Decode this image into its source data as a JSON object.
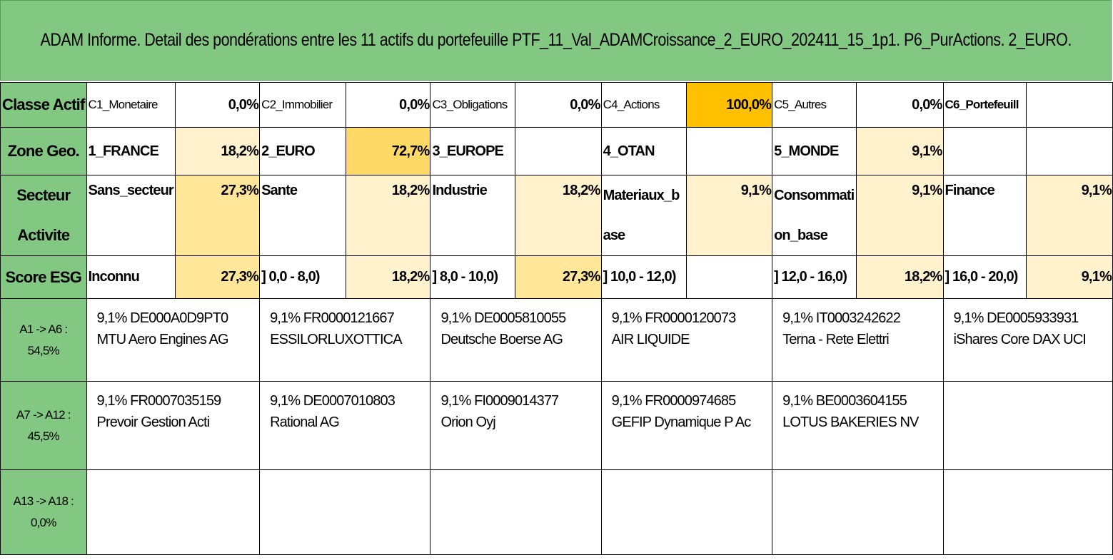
{
  "title": "ADAM Informe. Detail des pondérations entre les 11 actifs du portefeuille PTF_11_Val_ADAMCroissance_2_EURO_202411_15_1p1. P6_PurActions. 2_EURO.",
  "colors": {
    "header_green": "#82c882",
    "weight_pale": "#fff2cc",
    "weight_light": "#ffe699",
    "weight_mid": "#ffd966",
    "weight_strong": "#ffc000"
  },
  "classe_actif": {
    "label": "Classe Actif",
    "items": [
      {
        "name": "C1_Monetaire",
        "value": "0,0%"
      },
      {
        "name": "C2_Immobilier",
        "value": "0,0%"
      },
      {
        "name": "C3_Obligations",
        "value": "0,0%"
      },
      {
        "name": "C4_Actions",
        "value": "100,0%"
      },
      {
        "name": "C5_Autres",
        "value": "0,0%"
      },
      {
        "name": "C6_Portefeuill",
        "value": ""
      }
    ]
  },
  "zone_geo": {
    "label": "Zone Geo.",
    "items": [
      {
        "name": "1_FRANCE",
        "value": "18,2%"
      },
      {
        "name": "2_EURO",
        "value": "72,7%"
      },
      {
        "name": "3_EUROPE",
        "value": ""
      },
      {
        "name": "4_OTAN",
        "value": ""
      },
      {
        "name": "5_MONDE",
        "value": "9,1%"
      },
      {
        "name": "",
        "value": ""
      }
    ]
  },
  "secteur": {
    "label_line1": "Secteur",
    "label_line2": "Activite",
    "items": [
      {
        "name": "Sans_secteur",
        "value": "27,3%"
      },
      {
        "name": "Sante",
        "value": "18,2%"
      },
      {
        "name": "Industrie",
        "value": "18,2%"
      },
      {
        "name": "Materiaux_b ase",
        "value": "9,1%"
      },
      {
        "name": "Consommati on_base",
        "value": "9,1%"
      },
      {
        "name": "Finance",
        "value": "9,1%"
      }
    ]
  },
  "score_esg": {
    "label": "Score ESG",
    "items": [
      {
        "name": "Inconnu",
        "value": "27,3%"
      },
      {
        "name": "] 0,0 - 8,0)",
        "value": "18,2%"
      },
      {
        "name": "] 8,0 - 10,0)",
        "value": "27,3%"
      },
      {
        "name": "] 10,0 - 12,0)",
        "value": ""
      },
      {
        "name": "] 12,0 - 16,0)",
        "value": "18,2%"
      },
      {
        "name": "] 16,0 - 20,0)",
        "value": "9,1%"
      }
    ]
  },
  "asset_groups": [
    {
      "range": "A1 -> A6 :",
      "total": "54,5%",
      "assets": [
        {
          "line1": "9,1% DE000A0D9PT0",
          "line2": "MTU Aero Engines AG"
        },
        {
          "line1": "9,1% FR0000121667",
          "line2": "ESSILORLUXOTTICA"
        },
        {
          "line1": "9,1% DE0005810055",
          "line2": "Deutsche Boerse AG"
        },
        {
          "line1": "9,1% FR0000120073",
          "line2": "AIR LIQUIDE"
        },
        {
          "line1": "9,1% IT0003242622",
          "line2": "Terna - Rete Elettri"
        },
        {
          "line1": "9,1% DE0005933931",
          "line2": "iShares Core DAX UCI"
        }
      ]
    },
    {
      "range": "A7 -> A12 :",
      "total": "45,5%",
      "assets": [
        {
          "line1": "9,1% FR0007035159",
          "line2": "Prevoir Gestion Acti"
        },
        {
          "line1": "9,1% DE0007010803",
          "line2": "Rational AG"
        },
        {
          "line1": "9,1% FI0009014377",
          "line2": "Orion Oyj"
        },
        {
          "line1": "9,1% FR0000974685",
          "line2": "GEFIP Dynamique P Ac"
        },
        {
          "line1": "9,1% BE0003604155",
          "line2": "LOTUS BAKERIES NV"
        },
        {
          "line1": "",
          "line2": ""
        }
      ]
    },
    {
      "range": "A13 -> A18 :",
      "total": "0,0%",
      "assets": [
        {
          "line1": "",
          "line2": ""
        },
        {
          "line1": "",
          "line2": ""
        },
        {
          "line1": "",
          "line2": ""
        },
        {
          "line1": "",
          "line2": ""
        },
        {
          "line1": "",
          "line2": ""
        },
        {
          "line1": "",
          "line2": ""
        }
      ]
    }
  ]
}
